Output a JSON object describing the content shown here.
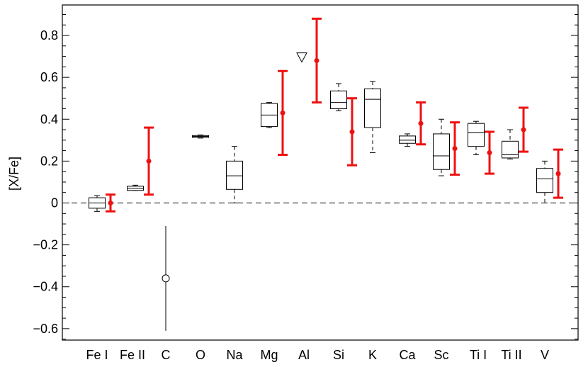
{
  "chart_data": {
    "type": "box",
    "ylabel": "[X/Fe]",
    "ylim": [
      -0.65,
      0.93
    ],
    "yticks": [
      "0.8",
      "0.6",
      "0.4",
      "0.2",
      "0",
      "-0.2",
      "-0.4",
      "-0.6"
    ],
    "categories": [
      "Fe I",
      "Fe II",
      "C",
      "O",
      "Na",
      "Mg",
      "Al",
      "Si",
      "K",
      "Ca",
      "Sc",
      "Ti I",
      "Ti II",
      "V"
    ],
    "reference_line": 0,
    "boxes": [
      {
        "element": "Fe I",
        "min": -0.04,
        "q1": -0.025,
        "median": 0.0,
        "q3": 0.025,
        "max": 0.035
      },
      {
        "element": "Fe II",
        "min": 0.06,
        "q1": 0.06,
        "median": 0.07,
        "q3": 0.08,
        "max": 0.085
      },
      {
        "element": "O",
        "min": 0.31,
        "q1": 0.313,
        "median": 0.318,
        "q3": 0.322,
        "max": 0.325
      },
      {
        "element": "Na",
        "min": 0.0,
        "q1": 0.065,
        "median": 0.13,
        "q3": 0.2,
        "max": 0.27
      },
      {
        "element": "Mg",
        "min": 0.36,
        "q1": 0.365,
        "median": 0.42,
        "q3": 0.475,
        "max": 0.48
      },
      {
        "element": "Si",
        "min": 0.44,
        "q1": 0.45,
        "median": 0.48,
        "q3": 0.535,
        "max": 0.57
      },
      {
        "element": "K",
        "min": 0.24,
        "q1": 0.36,
        "median": 0.495,
        "q3": 0.545,
        "max": 0.58
      },
      {
        "element": "Ca",
        "min": 0.27,
        "q1": 0.285,
        "median": 0.3,
        "q3": 0.32,
        "max": 0.33
      },
      {
        "element": "Sc",
        "min": 0.13,
        "q1": 0.16,
        "median": 0.225,
        "q3": 0.33,
        "max": 0.4
      },
      {
        "element": "Ti I",
        "min": 0.23,
        "q1": 0.27,
        "median": 0.335,
        "q3": 0.38,
        "max": 0.39
      },
      {
        "element": "Ti II",
        "min": 0.21,
        "q1": 0.215,
        "median": 0.23,
        "q3": 0.295,
        "max": 0.35
      },
      {
        "element": "V",
        "min": 0.0,
        "q1": 0.05,
        "median": 0.115,
        "q3": 0.165,
        "max": 0.2
      }
    ],
    "red_errorbars": [
      {
        "element": "Fe I",
        "value": 0.0,
        "low": -0.04,
        "high": 0.04
      },
      {
        "element": "Fe II",
        "value": 0.2,
        "low": 0.04,
        "high": 0.36
      },
      {
        "element": "Mg",
        "value": 0.43,
        "low": 0.23,
        "high": 0.63
      },
      {
        "element": "Al",
        "value": 0.68,
        "low": 0.48,
        "high": 0.88
      },
      {
        "element": "Si",
        "value": 0.34,
        "low": 0.18,
        "high": 0.5
      },
      {
        "element": "Ca",
        "value": 0.38,
        "low": 0.28,
        "high": 0.48
      },
      {
        "element": "Sc",
        "value": 0.26,
        "low": 0.135,
        "high": 0.385
      },
      {
        "element": "Ti I",
        "value": 0.24,
        "low": 0.14,
        "high": 0.34
      },
      {
        "element": "Ti II",
        "value": 0.35,
        "low": 0.245,
        "high": 0.455
      },
      {
        "element": "V",
        "value": 0.14,
        "low": 0.025,
        "high": 0.255
      }
    ],
    "open_circle": {
      "element": "C",
      "value": -0.36,
      "low": -0.61,
      "high": -0.11
    },
    "upper_limit": {
      "element": "Al",
      "value": 0.7
    },
    "colors": {
      "box": "#000000",
      "errorbar": "#ee1111",
      "reference_line": "#000000"
    }
  }
}
